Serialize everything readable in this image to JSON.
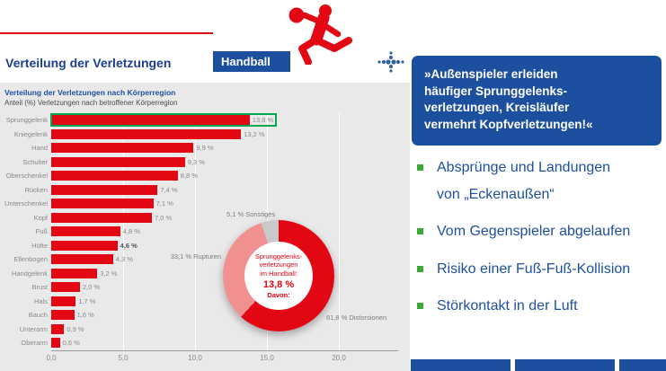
{
  "page": {
    "title": "Verteilung der Verletzungen"
  },
  "banner": {
    "label": "Handball"
  },
  "colors": {
    "accent_red": "#E30613",
    "brand_blue": "#1D4F9F",
    "bullet_green": "#3AAA35",
    "highlight_green": "#00A651",
    "panel_gray": "#E9E9E9"
  },
  "quote": {
    "lines": [
      "»Außenspieler erleiden",
      "häufiger Sprunggelenks-",
      "verletzungen, Kreisläufer",
      "vermehrt Kopfverletzungen!«"
    ]
  },
  "bullets": [
    {
      "lines": [
        "Absprünge und Landungen",
        "von „Eckenaußen“"
      ]
    },
    {
      "lines": [
        "Vom Gegenspieler abgelaufen"
      ]
    },
    {
      "lines": [
        "Risiko einer Fuß-Fuß-Kollision"
      ]
    },
    {
      "lines": [
        "Störkontakt in der Luft"
      ]
    }
  ],
  "chart_data": [
    {
      "type": "bar",
      "orientation": "horizontal",
      "title": "Verteilung der Verletzungen nach Körperregion",
      "subtitle": "Anteil (%) Verletzungen nach betroffener Körperregion",
      "categories": [
        "Sprunggelenk",
        "Kniegelenk",
        "Hand",
        "Schulter",
        "Oberschenkel",
        "Rücken",
        "Unterschenkel",
        "Kopf",
        "Fuß",
        "Hüfte",
        "Ellenbogen",
        "Handgelenk",
        "Brust",
        "Hals",
        "Bauch",
        "Unterarm",
        "Oberarm"
      ],
      "values": [
        13.8,
        13.2,
        9.9,
        9.3,
        8.8,
        7.4,
        7.1,
        7.0,
        4.8,
        4.6,
        4.3,
        3.2,
        2.0,
        1.7,
        1.6,
        0.9,
        0.6
      ],
      "value_labels": [
        "13,8 %",
        "13,2 %",
        "9,9 %",
        "9,3 %",
        "8,8 %",
        "7,4 %",
        "7,1 %",
        "7,0 %",
        "4,8 %",
        "4,6 %",
        "4,3 %",
        "3,2 %",
        "2,0 %",
        "1,7 %",
        "1,6 %",
        "0,9 %",
        "0,6 %"
      ],
      "bold_value_categories": [
        "Hüfte"
      ],
      "xlim": [
        0,
        20
      ],
      "x_ticks": {
        "values": [
          0,
          5,
          10,
          15,
          20
        ],
        "labels": [
          "0,0",
          "5,0",
          "10,0",
          "15,0",
          "20,0"
        ]
      },
      "highlight": {
        "category": "Sprunggelenk",
        "color": "#00A651"
      },
      "bar_color": "#E30613",
      "grid": true
    },
    {
      "type": "pie",
      "subtype": "donut",
      "center_lines": [
        "Sprunggelenks-",
        "verletzungen",
        "im Handball:"
      ],
      "center_value": "13,8 %",
      "center_sub": "Davon:",
      "slices": [
        {
          "label": "Distorsionen",
          "value": 61.8,
          "display": "61,8 % Distorsionen",
          "color": "#E30613"
        },
        {
          "label": "Rupturen",
          "value": 33.1,
          "display": "33,1 % Rupturen",
          "color": "#F0908F"
        },
        {
          "label": "Sonstiges",
          "value": 5.1,
          "display": "5,1 % Sonstiges",
          "color": "#C9C9C9"
        }
      ]
    }
  ]
}
